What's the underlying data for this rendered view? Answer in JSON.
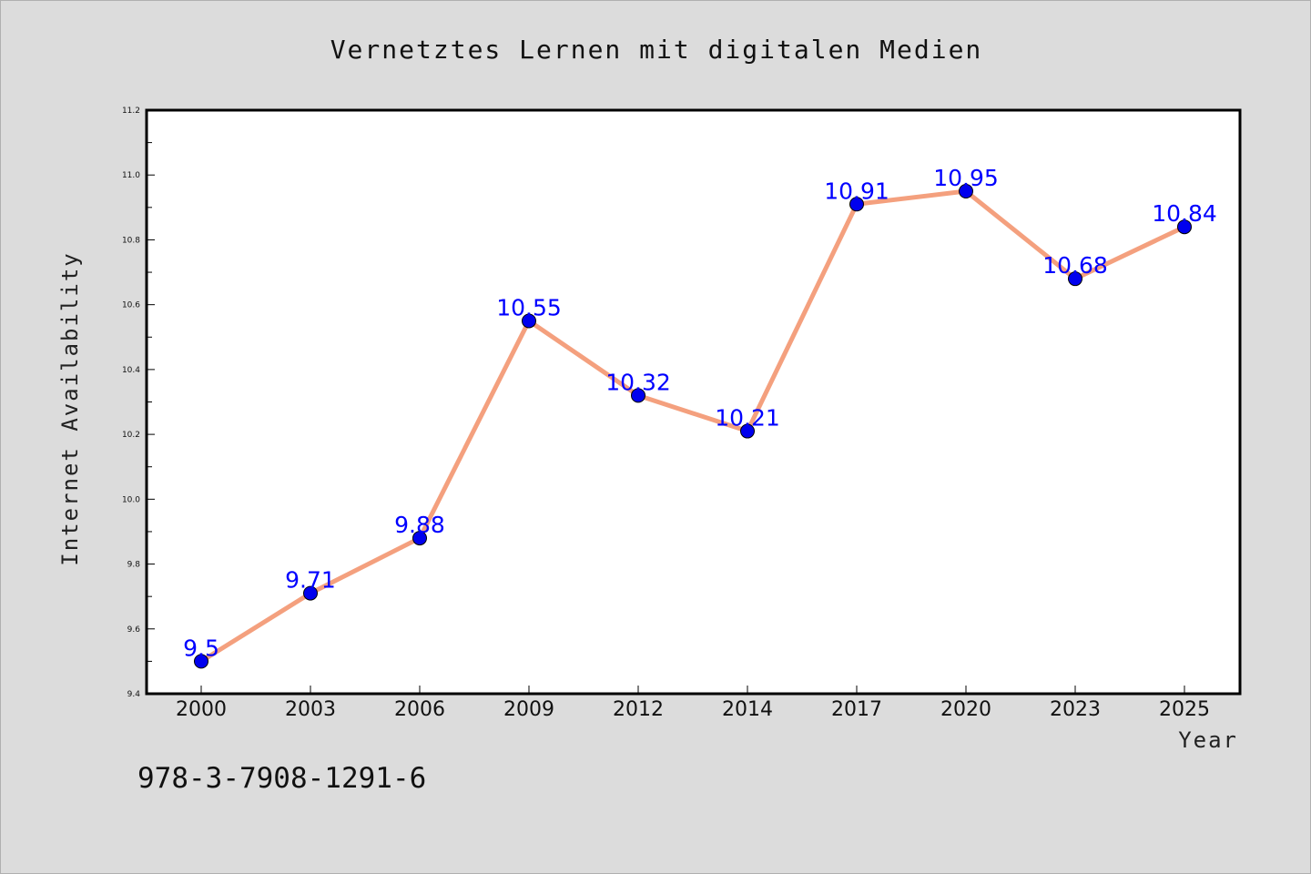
{
  "chart_data": {
    "type": "line",
    "title": "Vernetztes Lernen mit digitalen Medien",
    "xlabel": "Year",
    "ylabel": "Internet Availability",
    "categories": [
      "2000",
      "2003",
      "2006",
      "2009",
      "2012",
      "2014",
      "2017",
      "2020",
      "2023",
      "2025"
    ],
    "series": [
      {
        "values": [
          9.5,
          9.71,
          9.88,
          10.55,
          10.32,
          10.21,
          10.91,
          10.95,
          10.68,
          10.84
        ],
        "value_labels": [
          "9.5",
          "9.71",
          "9.88",
          "10.55",
          "10.32",
          "10.21",
          "10.91",
          "10.95",
          "10.68",
          "10.84"
        ],
        "line_color": "#f4a07e",
        "marker_color": "#0000ee",
        "label_color": "#0000ff"
      }
    ],
    "ylim": [
      9.4,
      11.2
    ],
    "yticks": [
      "9.4",
      "9.6",
      "9.8",
      "10.0",
      "10.2",
      "10.4",
      "10.6",
      "10.8",
      "11.0",
      "11.2"
    ],
    "grid": false,
    "legend": "none"
  },
  "footer_text": "978-3-7908-1291-6",
  "colors": {
    "background": "#dcdcdc",
    "plot_background": "#ffffff",
    "axes": "#000000"
  }
}
